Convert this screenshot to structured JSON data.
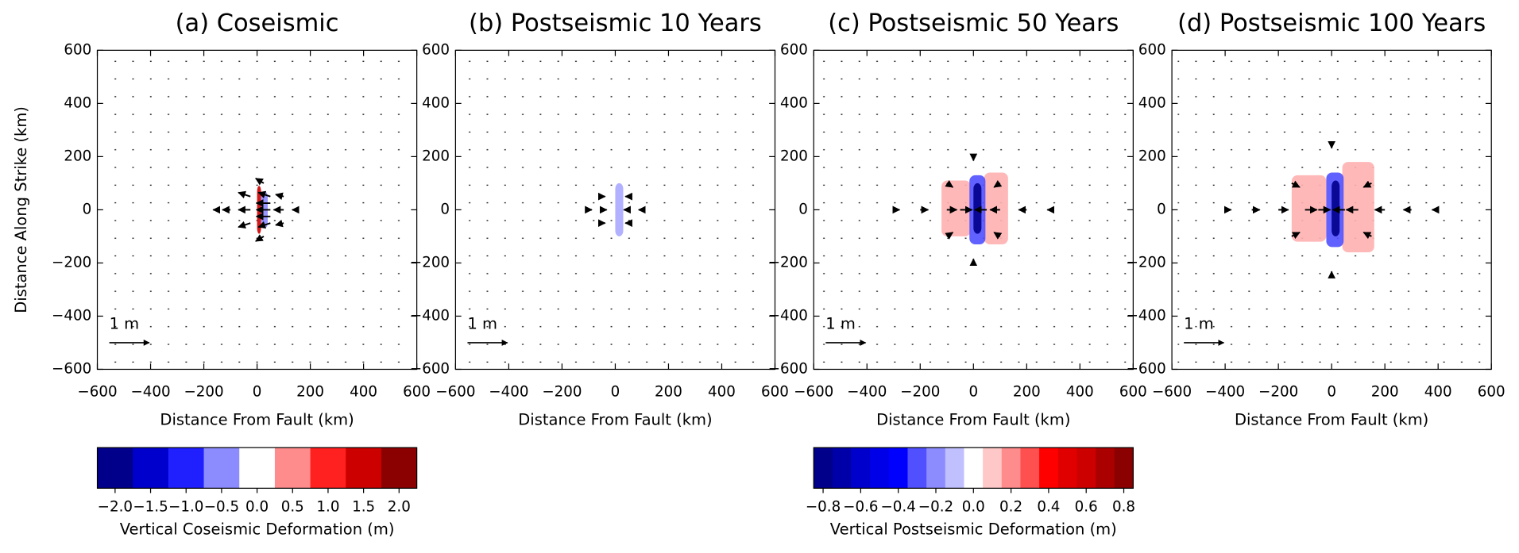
{
  "chart_data": [
    {
      "type": "quiver",
      "title": "(a) Coseismic",
      "xlabel": "Distance From Fault (km)",
      "ylabel": "Distance Along Strike (km)",
      "xlim": [
        -600,
        600
      ],
      "ylim": [
        -600,
        600
      ],
      "xticks": [
        {
          "value": -600,
          "label": "−600"
        },
        {
          "value": -400,
          "label": "−400"
        },
        {
          "value": -200,
          "label": "−200"
        },
        0,
        200,
        400,
        600
      ],
      "yticks": [
        {
          "value": -600,
          "label": "−600"
        },
        {
          "value": -400,
          "label": "−400"
        },
        {
          "value": -200,
          "label": "−200"
        },
        0,
        200,
        400,
        600
      ],
      "patches": [
        {
          "x": [
            0,
            15
          ],
          "y": [
            -90,
            90
          ],
          "value": 1.5,
          "color": "#cd0000"
        },
        {
          "x": [
            15,
            40
          ],
          "y": [
            -70,
            70
          ],
          "value": -0.5,
          "color": "#8c8cff"
        }
      ],
      "vectors": [
        {
          "x": 50,
          "y": 50,
          "u": -0.3,
          "v": 0.1
        },
        {
          "x": 50,
          "y": 25,
          "u": -0.35,
          "v": 0
        },
        {
          "x": 50,
          "y": 0,
          "u": -0.35,
          "v": 0
        },
        {
          "x": 50,
          "y": -25,
          "u": -0.35,
          "v": 0
        },
        {
          "x": 50,
          "y": -50,
          "u": -0.3,
          "v": -0.1
        },
        {
          "x": 100,
          "y": 50,
          "u": -0.2,
          "v": 0.05
        },
        {
          "x": 100,
          "y": 0,
          "u": -0.25,
          "v": 0
        },
        {
          "x": 100,
          "y": -50,
          "u": -0.2,
          "v": -0.05
        },
        {
          "x": 150,
          "y": 0,
          "u": -0.12,
          "v": 0
        },
        {
          "x": -25,
          "y": 50,
          "u": -0.3,
          "v": 0.1
        },
        {
          "x": -25,
          "y": 0,
          "u": -0.3,
          "v": 0
        },
        {
          "x": -25,
          "y": -50,
          "u": -0.3,
          "v": -0.1
        },
        {
          "x": -100,
          "y": 0,
          "u": -0.2,
          "v": 0
        },
        {
          "x": -150,
          "y": 0,
          "u": -0.1,
          "v": 0
        },
        {
          "x": 25,
          "y": 100,
          "u": -0.2,
          "v": 0.12
        },
        {
          "x": 25,
          "y": -100,
          "u": -0.2,
          "v": -0.12
        }
      ],
      "key": {
        "label": "1 m",
        "length": 1
      }
    },
    {
      "type": "quiver",
      "title": "(b) Postseismic 10 Years",
      "xlabel": "Distance From Fault (km)",
      "xlim": [
        -600,
        600
      ],
      "ylim": [
        -600,
        600
      ],
      "xticks": [
        {
          "value": -600,
          "label": "−600"
        },
        {
          "value": -400,
          "label": "−400"
        },
        {
          "value": -200,
          "label": "−200"
        },
        0,
        200,
        400,
        600
      ],
      "yticks": [
        {
          "value": -600,
          "label": "−600"
        },
        {
          "value": -400,
          "label": "−400"
        },
        {
          "value": -200,
          "label": "−200"
        },
        0,
        200,
        400,
        600
      ],
      "patches": [
        {
          "x": [
            0,
            30
          ],
          "y": [
            -100,
            100
          ],
          "value": -0.2,
          "color": "#a8a8ff"
        }
      ],
      "vectors": [
        {
          "x": 50,
          "y": 0,
          "u": -0.12,
          "v": 0
        },
        {
          "x": 100,
          "y": 0,
          "u": -0.08,
          "v": 0
        },
        {
          "x": 50,
          "y": 50,
          "u": -0.08,
          "v": 0
        },
        {
          "x": 50,
          "y": -50,
          "u": -0.08,
          "v": 0
        },
        {
          "x": -50,
          "y": 0,
          "u": 0.12,
          "v": 0
        },
        {
          "x": -100,
          "y": 0,
          "u": 0.08,
          "v": 0
        },
        {
          "x": -50,
          "y": 50,
          "u": 0.08,
          "v": 0
        },
        {
          "x": -50,
          "y": -50,
          "u": 0.08,
          "v": 0
        }
      ],
      "key": {
        "label": "1 m",
        "length": 1
      }
    },
    {
      "type": "quiver",
      "title": "(c) Postseismic 50 Years",
      "xlabel": "Distance From Fault (km)",
      "xlim": [
        -600,
        600
      ],
      "ylim": [
        -600,
        600
      ],
      "xticks": [
        {
          "value": -600,
          "label": "−600"
        },
        {
          "value": -400,
          "label": "−400"
        },
        {
          "value": -200,
          "label": "−200"
        },
        0,
        200,
        400,
        600
      ],
      "yticks": [
        {
          "value": -600,
          "label": "−600"
        },
        {
          "value": -400,
          "label": "−400"
        },
        {
          "value": -200,
          "label": "−200"
        },
        0,
        200,
        400,
        600
      ],
      "patches": [
        {
          "x": [
            -120,
            -10
          ],
          "y": [
            -100,
            110
          ],
          "value": 0.2,
          "color": "#ffb0b0"
        },
        {
          "x": [
            40,
            130
          ],
          "y": [
            -130,
            140
          ],
          "value": 0.2,
          "color": "#ffb0b0"
        },
        {
          "x": [
            -15,
            45
          ],
          "y": [
            -130,
            130
          ],
          "value": -0.4,
          "color": "#5050ff"
        },
        {
          "x": [
            0,
            30
          ],
          "y": [
            -90,
            100
          ],
          "value": -0.8,
          "color": "#00008b"
        }
      ],
      "vectors": [
        {
          "x": -300,
          "y": 0,
          "u": 0.15,
          "v": 0
        },
        {
          "x": -200,
          "y": 0,
          "u": 0.2,
          "v": 0
        },
        {
          "x": -100,
          "y": 0,
          "u": 0.25,
          "v": 0
        },
        {
          "x": -50,
          "y": 0,
          "u": 0.3,
          "v": 0
        },
        {
          "x": 300,
          "y": 0,
          "u": -0.15,
          "v": 0
        },
        {
          "x": 200,
          "y": 0,
          "u": -0.2,
          "v": 0
        },
        {
          "x": 100,
          "y": 0,
          "u": -0.25,
          "v": 0
        },
        {
          "x": 50,
          "y": 0,
          "u": -0.3,
          "v": 0
        },
        {
          "x": -100,
          "y": 100,
          "u": 0.15,
          "v": -0.1
        },
        {
          "x": 100,
          "y": 100,
          "u": -0.15,
          "v": -0.1
        },
        {
          "x": -100,
          "y": -100,
          "u": 0.15,
          "v": 0.1
        },
        {
          "x": 100,
          "y": -100,
          "u": -0.15,
          "v": 0.1
        },
        {
          "x": 0,
          "y": 200,
          "u": 0,
          "v": -0.1
        },
        {
          "x": 0,
          "y": -200,
          "u": 0,
          "v": 0.1
        }
      ],
      "key": {
        "label": "1 m",
        "length": 1
      }
    },
    {
      "type": "quiver",
      "title": "(d) Postseismic 100 Years",
      "xlabel": "Distance From Fault (km)",
      "xlim": [
        -600,
        600
      ],
      "ylim": [
        -600,
        600
      ],
      "xticks": [
        {
          "value": -600,
          "label": "−600"
        },
        {
          "value": -400,
          "label": "−400"
        },
        {
          "value": -200,
          "label": "−200"
        },
        0,
        200,
        400,
        600
      ],
      "yticks": [
        {
          "value": -600,
          "label": "−600"
        },
        {
          "value": -400,
          "label": "−400"
        },
        {
          "value": -200,
          "label": "−200"
        },
        0,
        200,
        400,
        600
      ],
      "patches": [
        {
          "x": [
            -150,
            -20
          ],
          "y": [
            -120,
            130
          ],
          "value": 0.2,
          "color": "#ffb0b0"
        },
        {
          "x": [
            40,
            160
          ],
          "y": [
            -160,
            180
          ],
          "value": 0.2,
          "color": "#ffb0b0"
        },
        {
          "x": [
            -20,
            45
          ],
          "y": [
            -140,
            140
          ],
          "value": -0.4,
          "color": "#5050ff"
        },
        {
          "x": [
            0,
            30
          ],
          "y": [
            -100,
            110
          ],
          "value": -0.8,
          "color": "#00008b"
        }
      ],
      "vectors": [
        {
          "x": -400,
          "y": 0,
          "u": 0.15,
          "v": 0
        },
        {
          "x": -300,
          "y": 0,
          "u": 0.2,
          "v": 0
        },
        {
          "x": -200,
          "y": 0,
          "u": 0.25,
          "v": 0
        },
        {
          "x": -100,
          "y": 0,
          "u": 0.3,
          "v": 0
        },
        {
          "x": -50,
          "y": 0,
          "u": 0.3,
          "v": 0
        },
        {
          "x": 400,
          "y": 0,
          "u": -0.15,
          "v": 0
        },
        {
          "x": 300,
          "y": 0,
          "u": -0.2,
          "v": 0
        },
        {
          "x": 200,
          "y": 0,
          "u": -0.25,
          "v": 0
        },
        {
          "x": 100,
          "y": 0,
          "u": -0.3,
          "v": 0
        },
        {
          "x": 50,
          "y": 0,
          "u": -0.3,
          "v": 0
        },
        {
          "x": -150,
          "y": 100,
          "u": 0.2,
          "v": -0.1
        },
        {
          "x": 150,
          "y": 100,
          "u": -0.2,
          "v": -0.1
        },
        {
          "x": -150,
          "y": -100,
          "u": 0.2,
          "v": 0.1
        },
        {
          "x": 150,
          "y": -100,
          "u": -0.2,
          "v": 0.1
        },
        {
          "x": 0,
          "y": 250,
          "u": 0,
          "v": -0.12
        },
        {
          "x": 0,
          "y": -250,
          "u": 0,
          "v": 0.12
        }
      ],
      "key": {
        "label": "1 m",
        "length": 1
      }
    },
    {
      "type": "colorbar",
      "title": "Vertical Coseismic Deformation (m)",
      "range": [
        -2.25,
        2.25
      ],
      "colors": [
        "#00008b",
        "#0000cd",
        "#2020ff",
        "#8c8cff",
        "#ffffff",
        "#ff8c8c",
        "#ff2020",
        "#cd0000",
        "#8b0000"
      ],
      "ticks": [
        {
          "value": -2,
          "label": "−2.0"
        },
        {
          "value": -1.5,
          "label": "−1.5"
        },
        {
          "value": -1,
          "label": "−1.0"
        },
        {
          "value": -0.5,
          "label": "−0.5"
        },
        {
          "value": 0,
          "label": "0.0"
        },
        {
          "value": 0.5,
          "label": "0.5"
        },
        {
          "value": 1,
          "label": "1.0"
        },
        {
          "value": 1.5,
          "label": "1.5"
        },
        {
          "value": 2,
          "label": "2.0"
        }
      ]
    },
    {
      "type": "colorbar",
      "title": "Vertical Postseismic Deformation (m)",
      "range": [
        -0.85,
        0.85
      ],
      "colors": [
        "#00008b",
        "#0000a8",
        "#0000cd",
        "#0000e8",
        "#0000ff",
        "#5050ff",
        "#8c8cff",
        "#c0c0ff",
        "#ffffff",
        "#ffc8c8",
        "#ff8c8c",
        "#ff5050",
        "#ff0000",
        "#e00000",
        "#cd0000",
        "#aa0000",
        "#8b0000"
      ],
      "ticks": [
        {
          "value": -0.8,
          "label": "−0.8"
        },
        {
          "value": -0.6,
          "label": "−0.6"
        },
        {
          "value": -0.4,
          "label": "−0.4"
        },
        {
          "value": -0.2,
          "label": "−0.2"
        },
        {
          "value": 0,
          "label": "0.0"
        },
        {
          "value": 0.2,
          "label": "0.2"
        },
        {
          "value": 0.4,
          "label": "0.4"
        },
        {
          "value": 0.6,
          "label": "0.6"
        },
        {
          "value": 0.8,
          "label": "0.8"
        }
      ]
    }
  ]
}
